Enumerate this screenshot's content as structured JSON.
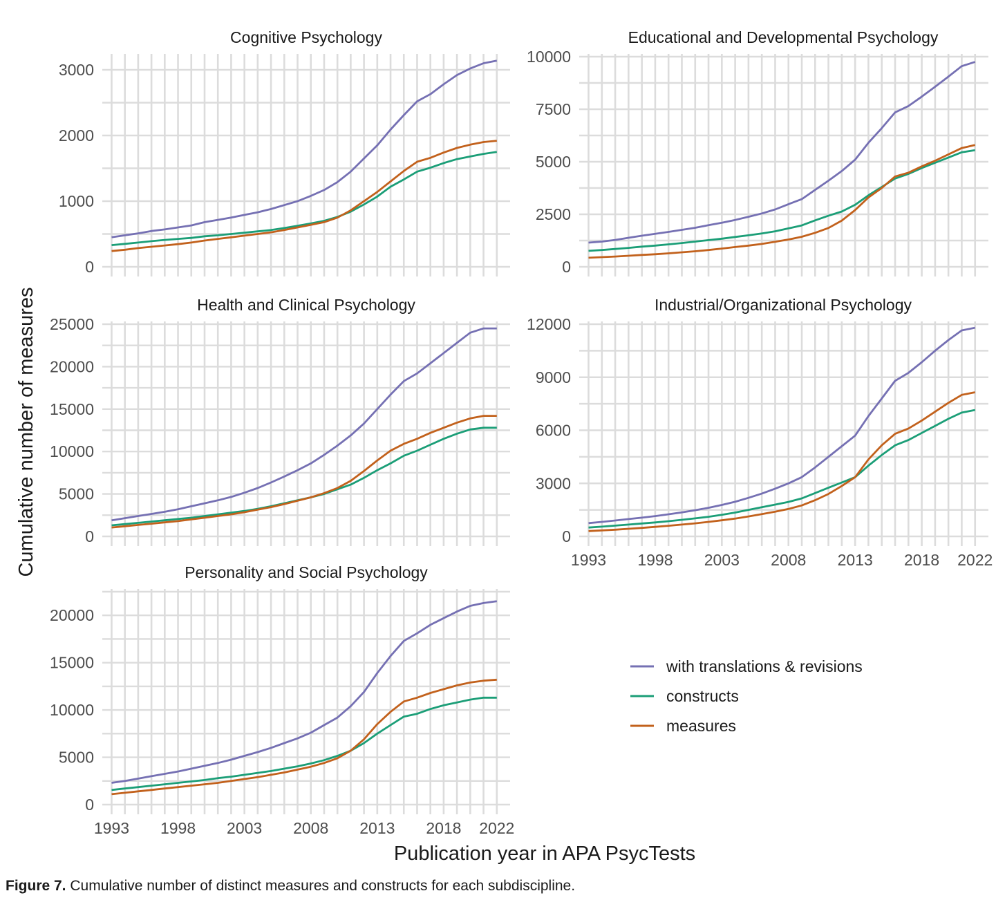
{
  "figure": {
    "label": "Figure 7.",
    "caption": "Cumulative number of distinct measures and constructs for each subdiscipline.",
    "xlabel": "Publication year in APA PsycTests",
    "ylabel": "Cumulative number of measures"
  },
  "colors": {
    "with_translations": "#7570b3",
    "constructs": "#1b9e77",
    "measures": "#c2611c",
    "grid": "#dcdcdc",
    "axis_text": "#4d4d4d"
  },
  "legend": {
    "placement": "bottom-right",
    "items": [
      {
        "label": "with translations & revisions",
        "color": "#7570b3"
      },
      {
        "label": "constructs",
        "color": "#1b9e77"
      },
      {
        "label": "measures",
        "color": "#c2611c"
      }
    ]
  },
  "chart_data": [
    {
      "type": "line",
      "title": "Cognitive Psychology",
      "x": [
        1993,
        1994,
        1995,
        1996,
        1997,
        1998,
        1999,
        2000,
        2001,
        2002,
        2003,
        2004,
        2005,
        2006,
        2007,
        2008,
        2009,
        2010,
        2011,
        2012,
        2013,
        2014,
        2015,
        2016,
        2017,
        2018,
        2019,
        2020,
        2021,
        2022
      ],
      "xticks": [
        "1993",
        "1998",
        "2003",
        "2008",
        "2013",
        "2018",
        "2022"
      ],
      "ylim": [
        0,
        3200
      ],
      "yticks": [
        0,
        1000,
        2000,
        3000
      ],
      "series": [
        {
          "name": "with translations & revisions",
          "values": [
            450,
            480,
            510,
            545,
            570,
            600,
            630,
            680,
            715,
            750,
            790,
            830,
            880,
            940,
            1000,
            1080,
            1170,
            1290,
            1450,
            1650,
            1850,
            2090,
            2310,
            2520,
            2630,
            2780,
            2920,
            3020,
            3100,
            3140
          ]
        },
        {
          "name": "constructs",
          "values": [
            330,
            350,
            370,
            390,
            410,
            425,
            440,
            465,
            480,
            500,
            520,
            540,
            560,
            590,
            625,
            660,
            700,
            760,
            840,
            950,
            1070,
            1220,
            1330,
            1450,
            1510,
            1580,
            1640,
            1680,
            1720,
            1750
          ]
        },
        {
          "name": "measures",
          "values": [
            240,
            260,
            285,
            305,
            325,
            345,
            370,
            400,
            425,
            450,
            475,
            500,
            525,
            560,
            600,
            640,
            680,
            750,
            860,
            1000,
            1140,
            1300,
            1460,
            1600,
            1660,
            1740,
            1810,
            1860,
            1900,
            1920
          ]
        }
      ]
    },
    {
      "type": "line",
      "title": "Educational and Developmental Psychology",
      "x": [
        1993,
        1994,
        1995,
        1996,
        1997,
        1998,
        1999,
        2000,
        2001,
        2002,
        2003,
        2004,
        2005,
        2006,
        2007,
        2008,
        2009,
        2010,
        2011,
        2012,
        2013,
        2014,
        2015,
        2016,
        2017,
        2018,
        2019,
        2020,
        2021,
        2022
      ],
      "xticks": [
        "1993",
        "1998",
        "2003",
        "2008",
        "2013",
        "2018",
        "2022"
      ],
      "ylim": [
        0,
        10000
      ],
      "yticks": [
        0,
        2500,
        5000,
        7500,
        10000
      ],
      "series": [
        {
          "name": "with translations & revisions",
          "values": [
            1150,
            1200,
            1280,
            1380,
            1480,
            1570,
            1660,
            1760,
            1860,
            1980,
            2100,
            2230,
            2380,
            2540,
            2730,
            2980,
            3220,
            3660,
            4100,
            4560,
            5100,
            5900,
            6600,
            7350,
            7650,
            8100,
            8570,
            9050,
            9550,
            9750
          ]
        },
        {
          "name": "constructs",
          "values": [
            760,
            800,
            850,
            900,
            960,
            1010,
            1070,
            1130,
            1200,
            1270,
            1340,
            1420,
            1500,
            1590,
            1690,
            1830,
            1970,
            2210,
            2430,
            2630,
            2950,
            3400,
            3800,
            4200,
            4420,
            4700,
            4950,
            5200,
            5450,
            5550
          ]
        },
        {
          "name": "measures",
          "values": [
            430,
            460,
            490,
            525,
            565,
            600,
            640,
            690,
            740,
            800,
            870,
            940,
            1010,
            1090,
            1190,
            1300,
            1430,
            1620,
            1850,
            2200,
            2700,
            3300,
            3750,
            4300,
            4480,
            4780,
            5050,
            5350,
            5650,
            5800
          ]
        }
      ]
    },
    {
      "type": "line",
      "title": "Health and Clinical Psychology",
      "x": [
        1993,
        1994,
        1995,
        1996,
        1997,
        1998,
        1999,
        2000,
        2001,
        2002,
        2003,
        2004,
        2005,
        2006,
        2007,
        2008,
        2009,
        2010,
        2011,
        2012,
        2013,
        2014,
        2015,
        2016,
        2017,
        2018,
        2019,
        2020,
        2021,
        2022
      ],
      "xticks": [
        "1993",
        "1998",
        "2003",
        "2008",
        "2013",
        "2018",
        "2022"
      ],
      "ylim": [
        0,
        25000
      ],
      "yticks": [
        0,
        5000,
        10000,
        15000,
        20000,
        25000
      ],
      "series": [
        {
          "name": "with translations & revisions",
          "values": [
            1900,
            2150,
            2400,
            2650,
            2900,
            3200,
            3550,
            3900,
            4250,
            4650,
            5150,
            5700,
            6350,
            7050,
            7800,
            8600,
            9600,
            10700,
            11900,
            13300,
            15000,
            16700,
            18300,
            19200,
            20400,
            21600,
            22800,
            24000,
            24500,
            24500
          ]
        },
        {
          "name": "constructs",
          "values": [
            1300,
            1450,
            1600,
            1750,
            1900,
            2050,
            2200,
            2400,
            2600,
            2800,
            3000,
            3250,
            3550,
            3900,
            4250,
            4600,
            5000,
            5550,
            6100,
            6900,
            7800,
            8600,
            9500,
            10100,
            10800,
            11500,
            12100,
            12600,
            12800,
            12800
          ]
        },
        {
          "name": "measures",
          "values": [
            1050,
            1200,
            1350,
            1500,
            1650,
            1800,
            2000,
            2200,
            2400,
            2600,
            2850,
            3150,
            3450,
            3800,
            4200,
            4600,
            5100,
            5700,
            6550,
            7700,
            8950,
            10100,
            10900,
            11500,
            12200,
            12800,
            13400,
            13900,
            14200,
            14200
          ]
        }
      ]
    },
    {
      "type": "line",
      "title": "Industrial/Organizational Psychology",
      "x": [
        1993,
        1994,
        1995,
        1996,
        1997,
        1998,
        1999,
        2000,
        2001,
        2002,
        2003,
        2004,
        2005,
        2006,
        2007,
        2008,
        2009,
        2010,
        2011,
        2012,
        2013,
        2014,
        2015,
        2016,
        2017,
        2018,
        2019,
        2020,
        2021,
        2022
      ],
      "xticks": [
        "1993",
        "1998",
        "2003",
        "2008",
        "2013",
        "2018",
        "2022"
      ],
      "ylim": [
        0,
        12000
      ],
      "yticks": [
        0,
        3000,
        6000,
        9000,
        12000
      ],
      "series": [
        {
          "name": "with translations & revisions",
          "values": [
            750,
            820,
            900,
            980,
            1060,
            1150,
            1250,
            1360,
            1480,
            1620,
            1780,
            1960,
            2180,
            2420,
            2700,
            3000,
            3350,
            3900,
            4500,
            5100,
            5700,
            6800,
            7800,
            8800,
            9250,
            9850,
            10500,
            11100,
            11650,
            11800
          ]
        },
        {
          "name": "constructs",
          "values": [
            500,
            550,
            610,
            670,
            730,
            790,
            860,
            940,
            1020,
            1110,
            1220,
            1350,
            1500,
            1650,
            1800,
            1950,
            2150,
            2450,
            2750,
            3050,
            3350,
            4000,
            4600,
            5150,
            5450,
            5850,
            6250,
            6650,
            7000,
            7150
          ]
        },
        {
          "name": "measures",
          "values": [
            300,
            340,
            380,
            430,
            480,
            540,
            600,
            670,
            740,
            820,
            910,
            1010,
            1130,
            1260,
            1400,
            1550,
            1750,
            2050,
            2400,
            2850,
            3350,
            4350,
            5150,
            5800,
            6100,
            6550,
            7050,
            7550,
            8000,
            8150
          ]
        }
      ]
    },
    {
      "type": "line",
      "title": "Personality and Social Psychology",
      "x": [
        1993,
        1994,
        1995,
        1996,
        1997,
        1998,
        1999,
        2000,
        2001,
        2002,
        2003,
        2004,
        2005,
        2006,
        2007,
        2008,
        2009,
        2010,
        2011,
        2012,
        2013,
        2014,
        2015,
        2016,
        2017,
        2018,
        2019,
        2020,
        2021,
        2022
      ],
      "xticks": [
        "1993",
        "1998",
        "2003",
        "2008",
        "2013",
        "2018",
        "2022"
      ],
      "ylim": [
        0,
        22500
      ],
      "yticks": [
        0,
        5000,
        10000,
        15000,
        20000
      ],
      "series": [
        {
          "name": "with translations & revisions",
          "values": [
            2300,
            2500,
            2750,
            3000,
            3250,
            3500,
            3800,
            4100,
            4400,
            4750,
            5150,
            5550,
            6000,
            6500,
            7000,
            7600,
            8400,
            9200,
            10400,
            11900,
            13900,
            15700,
            17300,
            18100,
            19000,
            19700,
            20400,
            21000,
            21300,
            21500
          ]
        },
        {
          "name": "constructs",
          "values": [
            1550,
            1700,
            1850,
            2000,
            2150,
            2300,
            2450,
            2600,
            2800,
            2950,
            3150,
            3350,
            3550,
            3800,
            4050,
            4350,
            4700,
            5150,
            5700,
            6500,
            7500,
            8400,
            9300,
            9600,
            10100,
            10500,
            10800,
            11100,
            11300,
            11300
          ]
        },
        {
          "name": "measures",
          "values": [
            1100,
            1250,
            1400,
            1550,
            1700,
            1850,
            2000,
            2150,
            2300,
            2500,
            2700,
            2900,
            3150,
            3400,
            3700,
            4000,
            4400,
            4900,
            5700,
            6900,
            8500,
            9800,
            10900,
            11300,
            11800,
            12200,
            12600,
            12900,
            13100,
            13200
          ]
        }
      ]
    }
  ]
}
